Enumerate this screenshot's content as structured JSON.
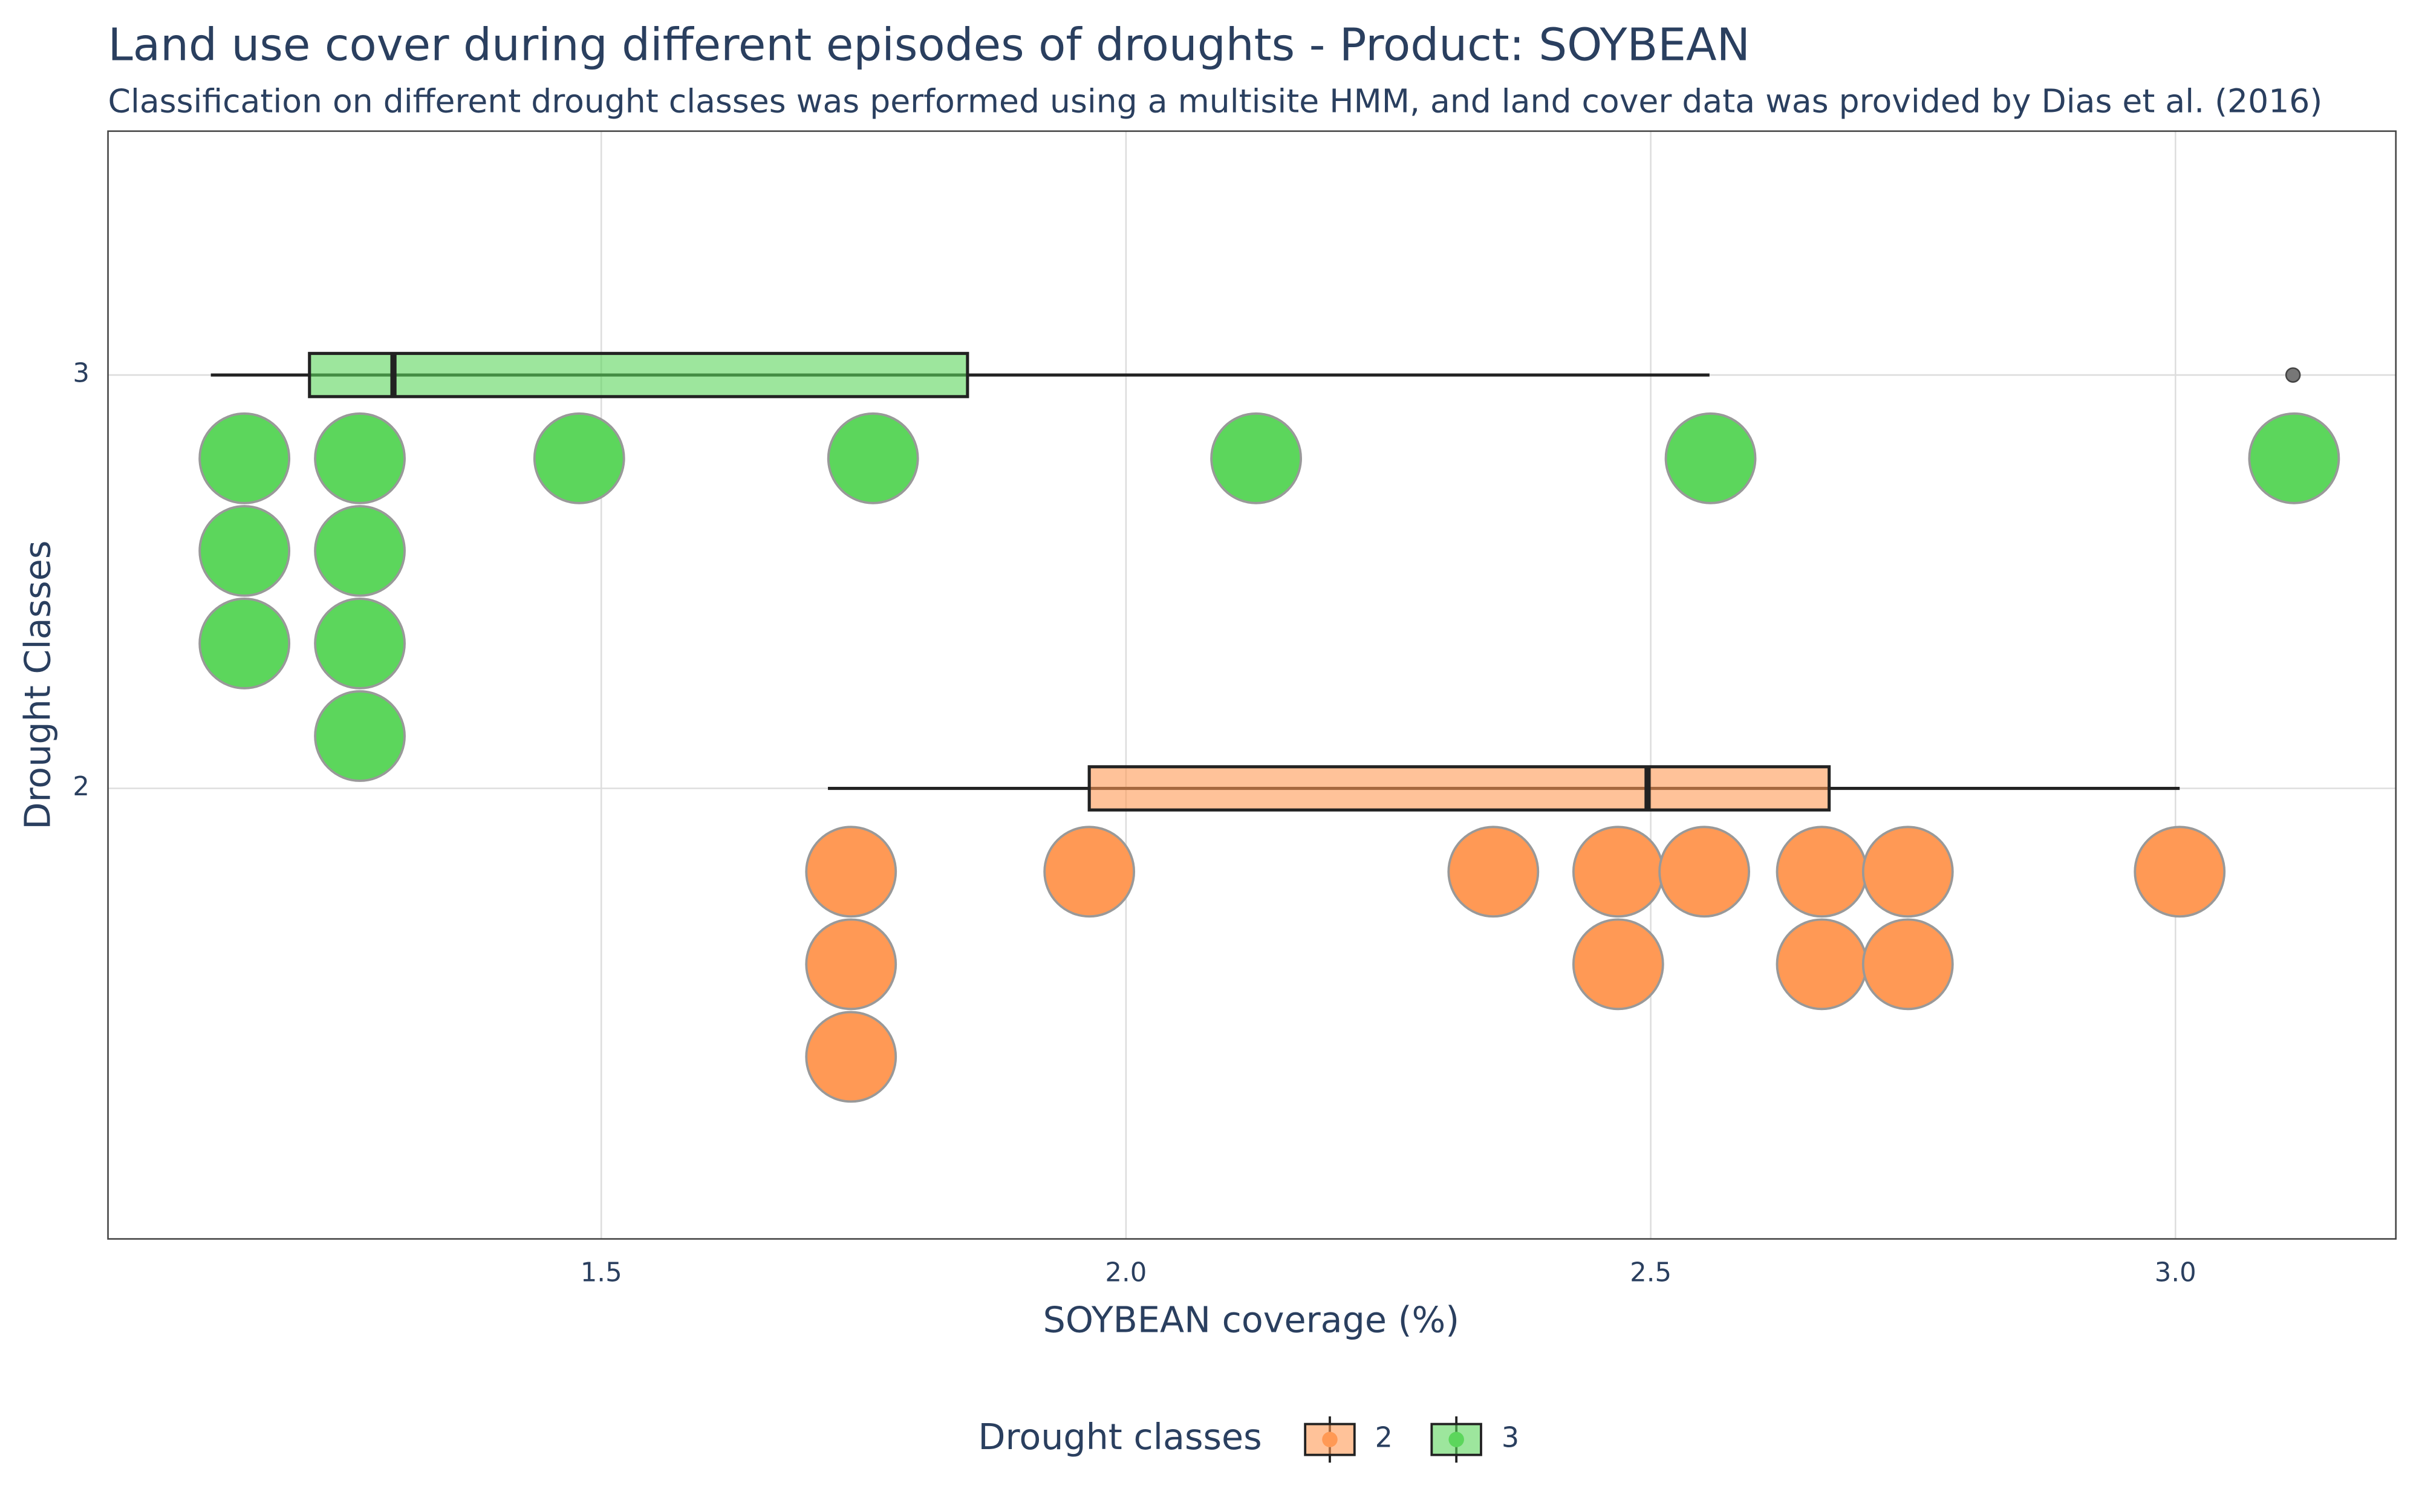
{
  "chart_data": {
    "type": "box",
    "orientation": "horizontal",
    "title": "Land use cover during different episodes of droughts - Product: SOYBEAN",
    "subtitle": "Classification on different drought classes was performed using a multisite HMM, and land cover data was provided by Dias et al. (2016)",
    "xlabel": "SOYBEAN coverage (%)",
    "ylabel": "Drought Classes",
    "xlim": [
      1.03,
      3.21
    ],
    "xticks": [
      1.5,
      {
        "value": 2,
        "label": "2.0"
      },
      2.5,
      {
        "value": 3,
        "label": "3.0"
      }
    ],
    "ylim": [
      0.91,
      3.59
    ],
    "yticks": [
      2,
      3
    ],
    "grid": true,
    "legend_title": "Drought classes",
    "legend_position": "bottom",
    "series": [
      {
        "name": "2",
        "y": 2,
        "color": "#ff9955",
        "whisker_low": 1.716,
        "q1": 1.965,
        "median": 2.497,
        "q3": 2.67,
        "whisker_high": 3.004,
        "outliers": [],
        "values": [
          1.738,
          1.738,
          1.738,
          1.965,
          2.35,
          2.469,
          2.469,
          2.551,
          2.663,
          2.663,
          2.745,
          2.745,
          3.004
        ]
      },
      {
        "name": "3",
        "y": 3,
        "color": "#5cd65c",
        "whisker_low": 1.128,
        "q1": 1.222,
        "median": 1.302,
        "q3": 1.849,
        "whisker_high": 2.556,
        "outliers": [
          3.112
        ],
        "values": [
          1.16,
          1.16,
          1.16,
          1.27,
          1.27,
          1.27,
          1.27,
          1.479,
          1.759,
          2.124,
          2.557,
          3.113
        ]
      }
    ]
  }
}
